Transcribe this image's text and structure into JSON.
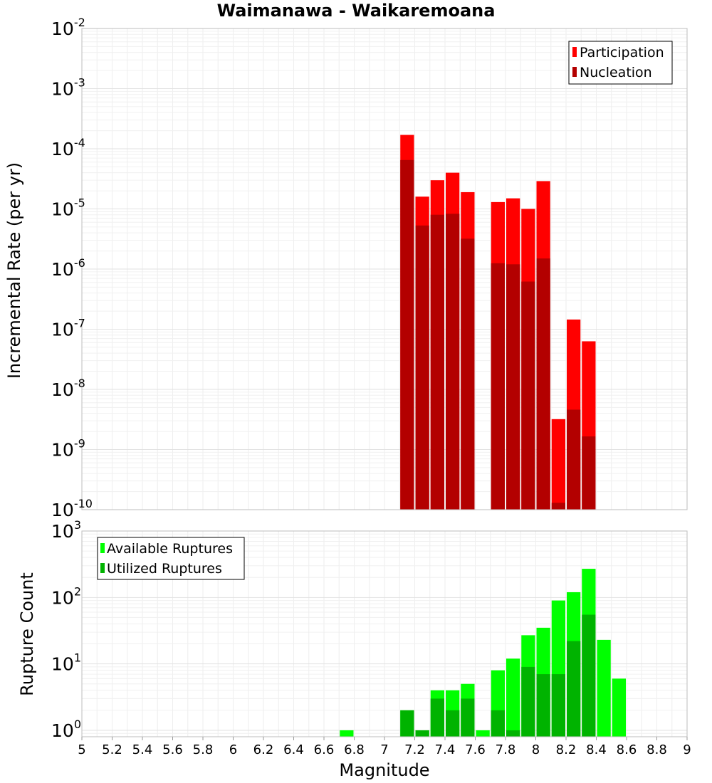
{
  "chart_data": {
    "title": "Waimanawa - Waikaremoana",
    "xlabel": "Magnitude",
    "x_ticks": [
      "5",
      "5.2",
      "5.4",
      "5.6",
      "5.8",
      "6",
      "6.2",
      "6.4",
      "6.6",
      "6.8",
      "7",
      "7.2",
      "7.4",
      "7.6",
      "7.8",
      "8",
      "8.2",
      "8.4",
      "8.6",
      "8.8",
      "9"
    ],
    "xlim": [
      5,
      9
    ],
    "bin_width": 0.1,
    "grid": true,
    "panels": [
      {
        "type": "bar",
        "ylabel": "Incremental Rate (per yr)",
        "yscale": "log",
        "ylim": [
          1e-10,
          0.01
        ],
        "y_ticks": [
          {
            "base": "10",
            "exp": "-10"
          },
          {
            "base": "10",
            "exp": "-9"
          },
          {
            "base": "10",
            "exp": "-8"
          },
          {
            "base": "10",
            "exp": "-7"
          },
          {
            "base": "10",
            "exp": "-6"
          },
          {
            "base": "10",
            "exp": "-5"
          },
          {
            "base": "10",
            "exp": "-4"
          },
          {
            "base": "10",
            "exp": "-3"
          },
          {
            "base": "10",
            "exp": "-2"
          }
        ],
        "legend_position": "top-right",
        "series": [
          {
            "name": "Participation",
            "color": "#ff0000",
            "x": [
              7.15,
              7.25,
              7.35,
              7.45,
              7.55,
              7.75,
              7.85,
              7.95,
              8.05,
              8.15,
              8.25,
              8.35
            ],
            "values": [
              0.00017,
              1.6e-05,
              3e-05,
              4e-05,
              1.9e-05,
              1.3e-05,
              1.5e-05,
              1e-05,
              2.9e-05,
              3.2e-09,
              1.45e-07,
              6.3e-08
            ]
          },
          {
            "name": "Nucleation",
            "color": "#b30000",
            "x": [
              7.15,
              7.25,
              7.35,
              7.45,
              7.55,
              7.75,
              7.85,
              7.95,
              8.05,
              8.15,
              8.25,
              8.35
            ],
            "values": [
              6.5e-05,
              5.3e-06,
              8e-06,
              8.3e-06,
              3.2e-06,
              1.25e-06,
              1.2e-06,
              6.2e-07,
              1.5e-06,
              1.3e-10,
              4.6e-09,
              1.65e-09
            ]
          }
        ]
      },
      {
        "type": "bar",
        "ylabel": "Rupture Count",
        "yscale": "log",
        "ylim": [
          0.8,
          1000
        ],
        "y_ticks": [
          {
            "base": "10",
            "exp": "0"
          },
          {
            "base": "10",
            "exp": "1"
          },
          {
            "base": "10",
            "exp": "2"
          },
          {
            "base": "10",
            "exp": "3"
          }
        ],
        "legend_position": "top-left",
        "series": [
          {
            "name": "Available Ruptures",
            "color": "#00ff00",
            "x": [
              6.75,
              7.15,
              7.25,
              7.35,
              7.45,
              7.55,
              7.65,
              7.75,
              7.85,
              7.95,
              8.05,
              8.15,
              8.25,
              8.35,
              8.45,
              8.55
            ],
            "values": [
              1,
              2,
              1,
              4,
              4,
              5,
              1,
              8,
              12,
              27,
              35,
              90,
              120,
              270,
              23,
              6
            ]
          },
          {
            "name": "Utilized Ruptures",
            "color": "#00b300",
            "x": [
              7.15,
              7.25,
              7.35,
              7.45,
              7.55,
              7.75,
              7.85,
              7.95,
              8.05,
              8.15,
              8.25,
              8.35
            ],
            "values": [
              2,
              1,
              3,
              2,
              3,
              2,
              1,
              9,
              7,
              7,
              22,
              55
            ]
          }
        ]
      }
    ]
  }
}
